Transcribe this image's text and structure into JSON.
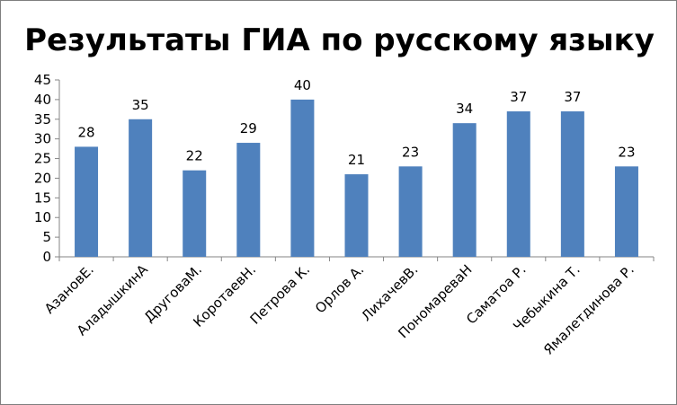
{
  "chart_data": {
    "type": "bar",
    "title": "Результаты ГИА по русскому языку",
    "xlabel": "",
    "ylabel": "",
    "categories": [
      "АзановЕ.",
      "АладышкинА",
      "ДруговаМ.",
      "КоротаевН.",
      "Петрова К.",
      "Орлов А.",
      "ЛихачевВ.",
      "ПономареваН",
      "Саматоа Р.",
      "Чебыкина Т.",
      "Ямалетдинова Р."
    ],
    "values": [
      28,
      35,
      22,
      29,
      40,
      21,
      23,
      34,
      37,
      37,
      23
    ],
    "ylim": [
      0,
      45
    ],
    "yticks": [
      0,
      5,
      10,
      15,
      20,
      25,
      30,
      35,
      40,
      45
    ],
    "grid": false,
    "legend": "none",
    "bar_color": "#4f81bd",
    "data_labels": true
  }
}
